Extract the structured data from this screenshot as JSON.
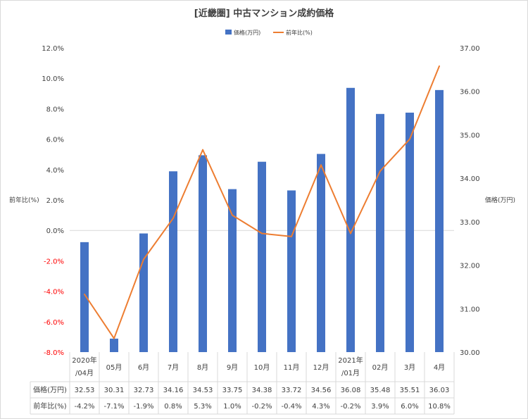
{
  "chart_data": {
    "type": "bar+line",
    "title": "[近畿圏] 中古マンション成約価格",
    "categories": [
      [
        "2020年",
        "/04月"
      ],
      [
        "05月"
      ],
      [
        "6月"
      ],
      [
        "7月"
      ],
      [
        "8月"
      ],
      [
        "9月"
      ],
      [
        "10月"
      ],
      [
        "11月"
      ],
      [
        "12月"
      ],
      [
        "2021年",
        "/01月"
      ],
      [
        "02月"
      ],
      [
        "3月"
      ],
      [
        "4月"
      ]
    ],
    "series": [
      {
        "name": "価格(万円)",
        "type": "bar",
        "axis": "right",
        "color": "#4472C4",
        "values": [
          32.53,
          30.31,
          32.73,
          34.16,
          34.53,
          33.75,
          34.38,
          33.72,
          34.56,
          36.08,
          35.48,
          35.51,
          36.03
        ],
        "table_labels": [
          "32.53",
          "30.31",
          "32.73",
          "34.16",
          "34.53",
          "33.75",
          "34.38",
          "33.72",
          "34.56",
          "36.08",
          "35.48",
          "35.51",
          "36.03"
        ]
      },
      {
        "name": "前年比(%)",
        "type": "line",
        "axis": "left",
        "color": "#ED7D31",
        "values": [
          -4.2,
          -7.1,
          -1.9,
          0.8,
          5.3,
          1.0,
          -0.2,
          -0.4,
          4.3,
          -0.2,
          3.9,
          6.0,
          10.8
        ],
        "table_labels": [
          "-4.2%",
          "-7.1%",
          "-1.9%",
          "0.8%",
          "5.3%",
          "1.0%",
          "-0.2%",
          "-0.4%",
          "4.3%",
          "-0.2%",
          "3.9%",
          "6.0%",
          "10.8%"
        ]
      }
    ],
    "left_axis": {
      "label": "前年比(%)",
      "range": [
        -8,
        12
      ],
      "ticks": [
        12,
        10,
        8,
        6,
        4,
        2,
        0,
        -2,
        -4,
        -6,
        -8
      ],
      "tick_labels": [
        "12.0%",
        "10.0%",
        "8.0%",
        "6.0%",
        "4.0%",
        "2.0%",
        "0.0%",
        "-2.0%",
        "-4.0%",
        "-6.0%",
        "-8.0%"
      ],
      "negative_color": "#FF0000"
    },
    "right_axis": {
      "label": "価格(万円)",
      "range": [
        30,
        37
      ],
      "ticks": [
        37,
        36,
        35,
        34,
        33,
        32,
        31,
        30
      ],
      "tick_labels": [
        "37.00",
        "36.00",
        "35.00",
        "34.00",
        "33.00",
        "32.00",
        "31.00",
        "30.00"
      ]
    },
    "table_row_labels": [
      "価格(万円)",
      "前年比(%)"
    ],
    "legend_position": "top",
    "grid": false
  }
}
